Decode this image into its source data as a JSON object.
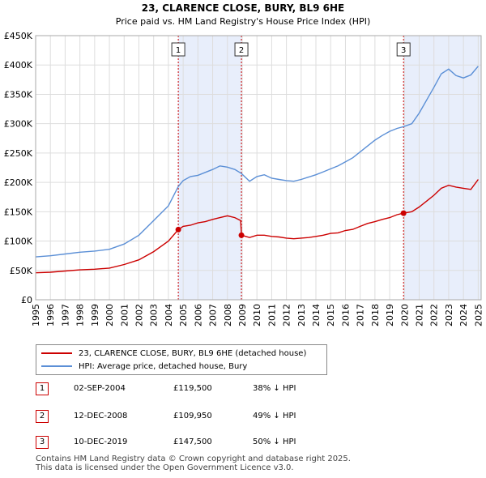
{
  "chart_data": {
    "type": "line",
    "title": "23, CLARENCE CLOSE, BURY, BL9 6HE",
    "subtitle": "Price paid vs. HM Land Registry's House Price Index (HPI)",
    "xlim": [
      1995,
      2025.2
    ],
    "ylim": [
      0,
      450000
    ],
    "x_ticks": [
      1995,
      1996,
      1997,
      1998,
      1999,
      2000,
      2001,
      2002,
      2003,
      2004,
      2005,
      2006,
      2007,
      2008,
      2009,
      2010,
      2011,
      2012,
      2013,
      2014,
      2015,
      2016,
      2017,
      2018,
      2019,
      2020,
      2021,
      2022,
      2023,
      2024,
      2025
    ],
    "y_ticks": [
      {
        "value": 0,
        "label": "£0"
      },
      {
        "value": 50000,
        "label": "£50K"
      },
      {
        "value": 100000,
        "label": "£100K"
      },
      {
        "value": 150000,
        "label": "£150K"
      },
      {
        "value": 200000,
        "label": "£200K"
      },
      {
        "value": 250000,
        "label": "£250K"
      },
      {
        "value": 300000,
        "label": "£300K"
      },
      {
        "value": 350000,
        "label": "£350K"
      },
      {
        "value": 400000,
        "label": "£400K"
      },
      {
        "value": 450000,
        "label": "£450K"
      }
    ],
    "series": [
      {
        "name": "23, CLARENCE CLOSE, BURY, BL9 6HE (detached house)",
        "color": "#cc0000",
        "points": [
          [
            1995.0,
            46000
          ],
          [
            1996.0,
            47000
          ],
          [
            1997.0,
            49000
          ],
          [
            1998.0,
            51000
          ],
          [
            1999.0,
            52000
          ],
          [
            2000.0,
            54000
          ],
          [
            2001.0,
            60000
          ],
          [
            2002.0,
            68000
          ],
          [
            2003.0,
            82000
          ],
          [
            2004.0,
            100000
          ],
          [
            2004.67,
            119500
          ],
          [
            2005.0,
            125000
          ],
          [
            2005.5,
            127000
          ],
          [
            2006.0,
            131000
          ],
          [
            2006.5,
            133000
          ],
          [
            2007.0,
            137000
          ],
          [
            2007.5,
            140000
          ],
          [
            2008.0,
            143000
          ],
          [
            2008.5,
            140000
          ],
          [
            2008.9,
            135000
          ],
          [
            2008.95,
            109950
          ],
          [
            2009.5,
            106000
          ],
          [
            2010.0,
            110000
          ],
          [
            2010.5,
            110000
          ],
          [
            2011.0,
            108000
          ],
          [
            2011.5,
            107000
          ],
          [
            2012.0,
            105000
          ],
          [
            2012.5,
            104000
          ],
          [
            2013.0,
            105000
          ],
          [
            2013.5,
            106000
          ],
          [
            2014.0,
            108000
          ],
          [
            2014.5,
            110000
          ],
          [
            2015.0,
            113000
          ],
          [
            2015.5,
            114000
          ],
          [
            2016.0,
            118000
          ],
          [
            2016.5,
            120000
          ],
          [
            2017.0,
            125000
          ],
          [
            2017.5,
            130000
          ],
          [
            2018.0,
            133000
          ],
          [
            2018.5,
            137000
          ],
          [
            2019.0,
            140000
          ],
          [
            2019.5,
            145000
          ],
          [
            2019.94,
            147500
          ],
          [
            2020.5,
            150000
          ],
          [
            2021.0,
            158000
          ],
          [
            2021.5,
            168000
          ],
          [
            2022.0,
            178000
          ],
          [
            2022.5,
            190000
          ],
          [
            2023.0,
            195000
          ],
          [
            2023.5,
            192000
          ],
          [
            2024.0,
            190000
          ],
          [
            2024.5,
            188000
          ],
          [
            2025.0,
            205000
          ]
        ]
      },
      {
        "name": "HPI: Average price, detached house, Bury",
        "color": "#5b8fd6",
        "points": [
          [
            1995.0,
            73000
          ],
          [
            1996.0,
            75000
          ],
          [
            1997.0,
            78000
          ],
          [
            1998.0,
            81000
          ],
          [
            1999.0,
            83000
          ],
          [
            2000.0,
            86000
          ],
          [
            2001.0,
            95000
          ],
          [
            2002.0,
            110000
          ],
          [
            2003.0,
            135000
          ],
          [
            2004.0,
            160000
          ],
          [
            2004.67,
            193000
          ],
          [
            2005.0,
            203000
          ],
          [
            2005.5,
            210000
          ],
          [
            2006.0,
            212000
          ],
          [
            2006.5,
            217000
          ],
          [
            2007.0,
            222000
          ],
          [
            2007.5,
            228000
          ],
          [
            2008.0,
            226000
          ],
          [
            2008.5,
            222000
          ],
          [
            2008.95,
            215000
          ],
          [
            2009.5,
            202000
          ],
          [
            2010.0,
            210000
          ],
          [
            2010.5,
            213000
          ],
          [
            2011.0,
            207000
          ],
          [
            2011.5,
            205000
          ],
          [
            2012.0,
            203000
          ],
          [
            2012.5,
            202000
          ],
          [
            2013.0,
            205000
          ],
          [
            2013.5,
            209000
          ],
          [
            2014.0,
            213000
          ],
          [
            2014.5,
            218000
          ],
          [
            2015.0,
            223000
          ],
          [
            2015.5,
            228000
          ],
          [
            2016.0,
            235000
          ],
          [
            2016.5,
            242000
          ],
          [
            2017.0,
            252000
          ],
          [
            2017.5,
            262000
          ],
          [
            2018.0,
            272000
          ],
          [
            2018.5,
            280000
          ],
          [
            2019.0,
            287000
          ],
          [
            2019.5,
            292000
          ],
          [
            2019.94,
            295000
          ],
          [
            2020.5,
            300000
          ],
          [
            2021.0,
            318000
          ],
          [
            2021.5,
            340000
          ],
          [
            2022.0,
            362000
          ],
          [
            2022.5,
            385000
          ],
          [
            2023.0,
            393000
          ],
          [
            2023.5,
            382000
          ],
          [
            2024.0,
            378000
          ],
          [
            2024.5,
            383000
          ],
          [
            2025.0,
            398000
          ]
        ]
      }
    ],
    "sales": [
      {
        "label": "1",
        "x": 2004.67,
        "price": 119500,
        "date": "02-SEP-2004",
        "price_text": "£119,500",
        "hpi_text": "38% ↓ HPI"
      },
      {
        "label": "2",
        "x": 2008.95,
        "price": 109950,
        "date": "12-DEC-2008",
        "price_text": "£109,950",
        "hpi_text": "49% ↓ HPI"
      },
      {
        "label": "3",
        "x": 2019.94,
        "price": 147500,
        "date": "10-DEC-2019",
        "price_text": "£147,500",
        "hpi_text": "50% ↓ HPI"
      }
    ],
    "shaded_periods": [
      [
        2004.67,
        2008.95
      ],
      [
        2019.94,
        2025.2
      ]
    ],
    "grid": true,
    "legend": "below-chart"
  },
  "colors": {
    "sales_line": "#cc0000",
    "hpi_line": "#5b8fd6",
    "shade": "#e8eefb",
    "grid": "#dddddd"
  },
  "legend": {
    "sales_label": "23, CLARENCE CLOSE, BURY, BL9 6HE (detached house)",
    "hpi_label": "HPI: Average price, detached house, Bury"
  },
  "footer": {
    "line1": "Contains HM Land Registry data © Crown copyright and database right 2025.",
    "line2": "This data is licensed under the Open Government Licence v3.0."
  }
}
